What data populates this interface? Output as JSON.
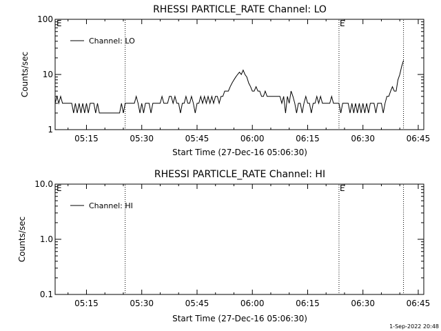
{
  "footer": {
    "timestamp": "1-Sep-2022 20:48"
  },
  "chart_data": [
    {
      "type": "line",
      "title": "RHESSI PARTICLE_RATE Channel: LO",
      "xlabel": "Start Time (27-Dec-16 05:06:30)",
      "ylabel": "Counts/sec",
      "yscale": "log",
      "ylim": [
        1,
        100
      ],
      "xlim": [
        "05:06:30",
        "06:46:30"
      ],
      "xticks": [
        "05:15",
        "05:30",
        "05:45",
        "06:00",
        "06:15",
        "06:30",
        "06:45"
      ],
      "yticks": [
        "1",
        "10",
        "100"
      ],
      "legend": {
        "placement": "top-left",
        "entries": [
          "Channel: LO"
        ]
      },
      "markers": [
        {
          "time": "05:25:30",
          "label": ""
        },
        {
          "time": "06:23:30",
          "label": "E"
        },
        {
          "time": "06:41:00",
          "label": ""
        }
      ],
      "corner_label": "E",
      "series": [
        {
          "name": "Channel: LO",
          "points": [
            [
              "05:06:30",
              3
            ],
            [
              "05:07:00",
              4
            ],
            [
              "05:07:30",
              3
            ],
            [
              "05:08:00",
              4
            ],
            [
              "05:08:30",
              3
            ],
            [
              "05:09:30",
              3
            ],
            [
              "05:10:00",
              3
            ],
            [
              "05:11:00",
              3
            ],
            [
              "05:11:30",
              2
            ],
            [
              "05:12:00",
              3
            ],
            [
              "05:12:30",
              2
            ],
            [
              "05:13:00",
              3
            ],
            [
              "05:13:30",
              2
            ],
            [
              "05:14:00",
              3
            ],
            [
              "05:14:30",
              2
            ],
            [
              "05:15:00",
              3
            ],
            [
              "05:15:30",
              2
            ],
            [
              "05:16:00",
              3
            ],
            [
              "05:17:00",
              3
            ],
            [
              "05:17:30",
              2
            ],
            [
              "05:18:00",
              3
            ],
            [
              "05:18:30",
              2
            ],
            [
              "05:19:00",
              2
            ],
            [
              "05:20:00",
              2
            ],
            [
              "05:21:00",
              2
            ],
            [
              "05:22:00",
              2
            ],
            [
              "05:23:00",
              2
            ],
            [
              "05:24:00",
              2
            ],
            [
              "05:24:30",
              3
            ],
            [
              "05:25:00",
              2
            ],
            [
              "05:25:30",
              3
            ],
            [
              "05:26:00",
              3
            ],
            [
              "05:27:00",
              3
            ],
            [
              "05:28:00",
              3
            ],
            [
              "05:28:30",
              4
            ],
            [
              "05:29:00",
              3
            ],
            [
              "05:29:30",
              2
            ],
            [
              "05:30:00",
              3
            ],
            [
              "05:30:30",
              2
            ],
            [
              "05:31:00",
              3
            ],
            [
              "05:32:00",
              3
            ],
            [
              "05:32:30",
              2
            ],
            [
              "05:33:00",
              3
            ],
            [
              "05:34:00",
              3
            ],
            [
              "05:35:00",
              3
            ],
            [
              "05:35:30",
              4
            ],
            [
              "05:36:00",
              3
            ],
            [
              "05:37:00",
              3
            ],
            [
              "05:37:30",
              4
            ],
            [
              "05:38:00",
              4
            ],
            [
              "05:38:30",
              3
            ],
            [
              "05:39:00",
              4
            ],
            [
              "05:39:30",
              3
            ],
            [
              "05:40:00",
              3
            ],
            [
              "05:40:30",
              2
            ],
            [
              "05:41:00",
              3
            ],
            [
              "05:41:30",
              3
            ],
            [
              "05:42:00",
              4
            ],
            [
              "05:42:30",
              3
            ],
            [
              "05:43:00",
              3
            ],
            [
              "05:43:30",
              4
            ],
            [
              "05:44:00",
              3
            ],
            [
              "05:44:30",
              2
            ],
            [
              "05:45:00",
              3
            ],
            [
              "05:45:30",
              3
            ],
            [
              "05:46:00",
              4
            ],
            [
              "05:46:30",
              3
            ],
            [
              "05:47:00",
              4
            ],
            [
              "05:47:30",
              3
            ],
            [
              "05:48:00",
              4
            ],
            [
              "05:48:30",
              3
            ],
            [
              "05:49:00",
              4
            ],
            [
              "05:49:30",
              3
            ],
            [
              "05:50:00",
              4
            ],
            [
              "05:50:30",
              4
            ],
            [
              "05:51:00",
              3
            ],
            [
              "05:51:30",
              4
            ],
            [
              "05:52:00",
              4
            ],
            [
              "05:52:30",
              5
            ],
            [
              "05:53:00",
              5
            ],
            [
              "05:53:30",
              5
            ],
            [
              "05:54:00",
              6
            ],
            [
              "05:54:30",
              7
            ],
            [
              "05:55:00",
              8
            ],
            [
              "05:55:30",
              9
            ],
            [
              "05:56:00",
              10
            ],
            [
              "05:56:30",
              11
            ],
            [
              "05:57:00",
              10
            ],
            [
              "05:57:30",
              12
            ],
            [
              "05:58:00",
              10
            ],
            [
              "05:58:30",
              9
            ],
            [
              "05:59:00",
              7
            ],
            [
              "05:59:30",
              6
            ],
            [
              "06:00:00",
              5
            ],
            [
              "06:00:30",
              5
            ],
            [
              "06:01:00",
              6
            ],
            [
              "06:01:30",
              5
            ],
            [
              "06:02:00",
              5
            ],
            [
              "06:02:30",
              4
            ],
            [
              "06:03:00",
              4
            ],
            [
              "06:03:30",
              5
            ],
            [
              "06:04:00",
              4
            ],
            [
              "06:04:30",
              4
            ],
            [
              "06:05:00",
              4
            ],
            [
              "06:05:30",
              4
            ],
            [
              "06:06:00",
              4
            ],
            [
              "06:06:30",
              4
            ],
            [
              "06:07:00",
              4
            ],
            [
              "06:07:30",
              4
            ],
            [
              "06:08:00",
              3
            ],
            [
              "06:08:30",
              4
            ],
            [
              "06:09:00",
              2
            ],
            [
              "06:09:30",
              4
            ],
            [
              "06:10:00",
              3
            ],
            [
              "06:10:30",
              5
            ],
            [
              "06:11:00",
              4
            ],
            [
              "06:11:30",
              3
            ],
            [
              "06:12:00",
              2
            ],
            [
              "06:12:30",
              3
            ],
            [
              "06:13:00",
              3
            ],
            [
              "06:13:30",
              2
            ],
            [
              "06:14:00",
              3
            ],
            [
              "06:14:30",
              4
            ],
            [
              "06:15:00",
              3
            ],
            [
              "06:15:30",
              3
            ],
            [
              "06:16:00",
              2
            ],
            [
              "06:16:30",
              3
            ],
            [
              "06:17:00",
              3
            ],
            [
              "06:17:30",
              4
            ],
            [
              "06:18:00",
              3
            ],
            [
              "06:18:30",
              4
            ],
            [
              "06:19:00",
              3
            ],
            [
              "06:19:30",
              3
            ],
            [
              "06:20:00",
              3
            ],
            [
              "06:20:30",
              3
            ],
            [
              "06:21:00",
              3
            ],
            [
              "06:21:30",
              4
            ],
            [
              "06:22:00",
              3
            ],
            [
              "06:22:30",
              3
            ],
            [
              "06:23:00",
              3
            ],
            [
              "06:23:30",
              3
            ],
            [
              "06:24:00",
              2
            ],
            [
              "06:24:30",
              3
            ],
            [
              "06:25:00",
              3
            ],
            [
              "06:26:00",
              3
            ],
            [
              "06:26:30",
              2
            ],
            [
              "06:27:00",
              3
            ],
            [
              "06:27:30",
              2
            ],
            [
              "06:28:00",
              3
            ],
            [
              "06:28:30",
              2
            ],
            [
              "06:29:00",
              3
            ],
            [
              "06:29:30",
              2
            ],
            [
              "06:30:00",
              3
            ],
            [
              "06:30:30",
              2
            ],
            [
              "06:31:00",
              3
            ],
            [
              "06:31:30",
              2
            ],
            [
              "06:32:00",
              3
            ],
            [
              "06:33:00",
              3
            ],
            [
              "06:33:30",
              2
            ],
            [
              "06:34:00",
              3
            ],
            [
              "06:35:00",
              3
            ],
            [
              "06:35:30",
              2
            ],
            [
              "06:36:00",
              3
            ],
            [
              "06:36:30",
              4
            ],
            [
              "06:37:00",
              4
            ],
            [
              "06:37:30",
              5
            ],
            [
              "06:38:00",
              6
            ],
            [
              "06:38:30",
              5
            ],
            [
              "06:39:00",
              5
            ],
            [
              "06:39:30",
              8
            ],
            [
              "06:40:00",
              10
            ],
            [
              "06:40:30",
              14
            ],
            [
              "06:41:00",
              18
            ]
          ]
        }
      ]
    },
    {
      "type": "line",
      "title": "RHESSI PARTICLE_RATE Channel: HI",
      "xlabel": "Start Time (27-Dec-16 05:06:30)",
      "ylabel": "Counts/sec",
      "yscale": "log",
      "ylim": [
        0.1,
        10
      ],
      "xlim": [
        "05:06:30",
        "06:46:30"
      ],
      "xticks": [
        "05:15",
        "05:30",
        "05:45",
        "06:00",
        "06:15",
        "06:30",
        "06:45"
      ],
      "yticks": [
        "0.1",
        "1.0",
        "10.0"
      ],
      "legend": {
        "placement": "top-left",
        "entries": [
          "Channel: HI"
        ]
      },
      "markers": [
        {
          "time": "05:25:30",
          "label": ""
        },
        {
          "time": "06:23:30",
          "label": "E"
        },
        {
          "time": "06:41:00",
          "label": ""
        }
      ],
      "corner_label": "E",
      "series": [
        {
          "name": "Channel: HI",
          "points": []
        }
      ]
    }
  ]
}
